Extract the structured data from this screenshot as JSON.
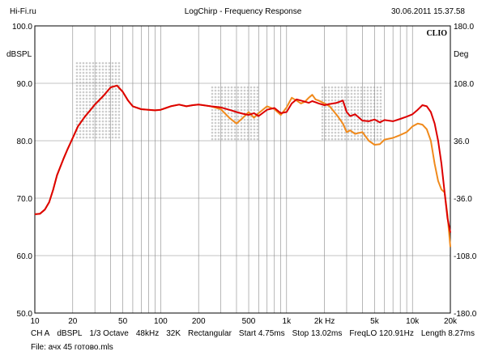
{
  "header": {
    "site": "Hi-Fi.ru",
    "title": "LogChirp - Frequency Response",
    "datetime": "30.06.2011 15.37.58"
  },
  "brand": "CLIO",
  "footer": {
    "params": [
      "CH A",
      "dBSPL",
      "1/3 Octave",
      "48kHz",
      "32K",
      "Rectangular",
      "Start 4.75ms",
      "Stop 13.02ms",
      "FreqLO 120.91Hz",
      "Length 8.27ms"
    ],
    "file": "File: ачх 45 готово.mls"
  },
  "colors": {
    "series_red": "#dd0000",
    "series_orange": "#f08a1c",
    "grid": "#888888",
    "watermark": "#cccccc"
  },
  "chart_data": {
    "type": "line",
    "x_scale": "log",
    "xlim": [
      10,
      20000
    ],
    "ylim": [
      50,
      100
    ],
    "y2lim": [
      -180,
      180
    ],
    "ylabel": "dBSPL",
    "y2label": "Deg",
    "grid": true,
    "x_tick_labels": [
      {
        "value": 10,
        "label": "10"
      },
      {
        "value": 20,
        "label": "20"
      },
      {
        "value": 50,
        "label": "50"
      },
      {
        "value": 100,
        "label": "100"
      },
      {
        "value": 200,
        "label": "200"
      },
      {
        "value": 500,
        "label": "500"
      },
      {
        "value": 1000,
        "label": "1k"
      },
      {
        "value": 2000,
        "label": "2k Hz"
      },
      {
        "value": 5000,
        "label": "5k"
      },
      {
        "value": 10000,
        "label": "10k"
      },
      {
        "value": 20000,
        "label": "20k"
      }
    ],
    "y_tick_labels": [
      "100.0",
      "90.0",
      "80.0",
      "70.0",
      "60.0",
      "50.0"
    ],
    "y2_tick_labels": [
      "180.0",
      "108.0",
      "36.0",
      "-36.0",
      "-108.0",
      "-180.0"
    ],
    "series": [
      {
        "color": "#dd0000",
        "x": [
          10,
          11,
          12,
          13,
          14,
          15,
          17,
          18,
          20,
          22,
          25,
          28,
          30,
          35,
          40,
          45,
          50,
          55,
          60,
          70,
          80,
          90,
          100,
          110,
          120,
          140,
          160,
          180,
          200,
          250,
          300,
          350,
          400,
          450,
          500,
          550,
          600,
          700,
          800,
          900,
          1000,
          1100,
          1200,
          1300,
          1400,
          1500,
          1600,
          1700,
          1800,
          2000,
          2200,
          2500,
          2800,
          3000,
          3200,
          3500,
          4000,
          4500,
          5000,
          5500,
          6000,
          7000,
          8000,
          9000,
          10000,
          11000,
          12000,
          13000,
          14000,
          15000,
          16000,
          17000,
          18000,
          19000,
          20000
        ],
        "y": [
          67.2,
          67.3,
          68.0,
          69.3,
          71.5,
          74.0,
          77.0,
          78.3,
          80.5,
          82.5,
          84.2,
          85.5,
          86.3,
          87.8,
          89.3,
          89.6,
          88.5,
          87.0,
          86.0,
          85.5,
          85.4,
          85.3,
          85.4,
          85.7,
          86.0,
          86.3,
          86.0,
          86.2,
          86.3,
          86.0,
          85.8,
          85.4,
          85.0,
          84.7,
          84.5,
          84.8,
          84.3,
          85.4,
          85.7,
          84.8,
          85.0,
          86.5,
          87.2,
          87.0,
          86.8,
          86.6,
          86.9,
          86.7,
          86.5,
          86.2,
          86.4,
          86.6,
          87.0,
          85.0,
          84.3,
          84.6,
          83.5,
          83.4,
          83.7,
          83.2,
          83.6,
          83.4,
          83.8,
          84.2,
          84.6,
          85.4,
          86.2,
          86.0,
          85.0,
          83.0,
          80.0,
          76.0,
          71.0,
          66.5,
          64.0
        ]
      },
      {
        "color": "#f08a1c",
        "x": [
          10,
          11,
          12,
          13,
          14,
          15,
          17,
          18,
          20,
          22,
          25,
          28,
          30,
          35,
          40,
          45,
          50,
          55,
          60,
          70,
          80,
          90,
          100,
          110,
          120,
          140,
          160,
          180,
          200,
          250,
          300,
          350,
          400,
          450,
          500,
          550,
          600,
          700,
          800,
          900,
          1000,
          1100,
          1200,
          1300,
          1400,
          1500,
          1600,
          1700,
          1800,
          2000,
          2200,
          2500,
          2800,
          3000,
          3200,
          3500,
          4000,
          4500,
          5000,
          5500,
          6000,
          7000,
          8000,
          9000,
          10000,
          11000,
          12000,
          13000,
          14000,
          15000,
          16000,
          17000,
          18000,
          19000,
          20000
        ],
        "y": [
          67.2,
          67.3,
          68.0,
          69.3,
          71.5,
          74.0,
          77.0,
          78.3,
          80.5,
          82.5,
          84.2,
          85.5,
          86.3,
          87.8,
          89.3,
          89.6,
          88.5,
          87.0,
          86.0,
          85.5,
          85.4,
          85.3,
          85.4,
          85.7,
          86.0,
          86.3,
          86.0,
          86.2,
          86.3,
          86.0,
          85.5,
          84.0,
          83.0,
          84.0,
          85.0,
          84.0,
          84.8,
          86.0,
          85.5,
          84.5,
          85.8,
          87.5,
          87.0,
          86.5,
          86.8,
          87.5,
          88.0,
          87.2,
          87.0,
          86.5,
          86.0,
          84.5,
          83.0,
          81.5,
          81.8,
          81.2,
          81.5,
          80.0,
          79.3,
          79.4,
          80.2,
          80.5,
          81.0,
          81.5,
          82.5,
          83.0,
          82.8,
          82.0,
          80.0,
          76.0,
          73.0,
          71.5,
          71.0,
          67.0,
          61.5
        ]
      }
    ]
  }
}
